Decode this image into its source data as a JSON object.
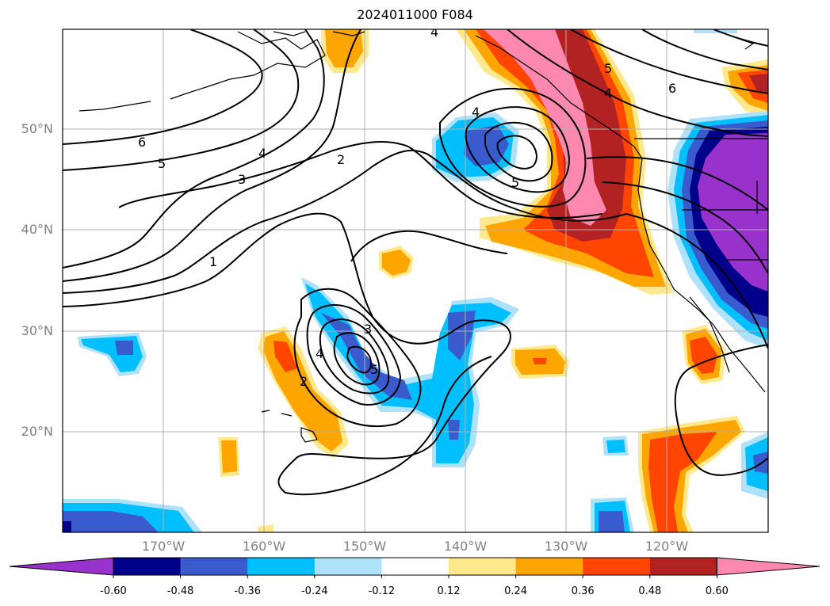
{
  "title": "2024011000 F084",
  "lat_labels": [
    "50°N",
    "40°N",
    "30°N",
    "20°N"
  ],
  "lon_labels": [
    "170°W",
    "160°W",
    "150°W",
    "140°W",
    "130°W",
    "120°W"
  ],
  "colorbar": {
    "labels": [
      "-0.60",
      "-0.48",
      "-0.36",
      "-0.24",
      "-0.12",
      "0.12",
      "0.24",
      "0.36",
      "0.48",
      "0.60"
    ],
    "colors": [
      "#9932CC",
      "#00008B",
      "#3A5BCD",
      "#00BFFF",
      "#ADE2FA",
      "#FFFFFF",
      "#FFE98C",
      "#FFA500",
      "#FF4500",
      "#B22222",
      "#FF88B0"
    ]
  },
  "contour_labels": [
    "6",
    "5",
    "4",
    "3",
    "2",
    "1",
    "4",
    "5",
    "4",
    "3",
    "2",
    "5",
    "6",
    "4",
    "5",
    "3",
    "4"
  ],
  "colors": {
    "contour": "#000000",
    "grid": "#b0b0b0",
    "coast": "#000000"
  }
}
